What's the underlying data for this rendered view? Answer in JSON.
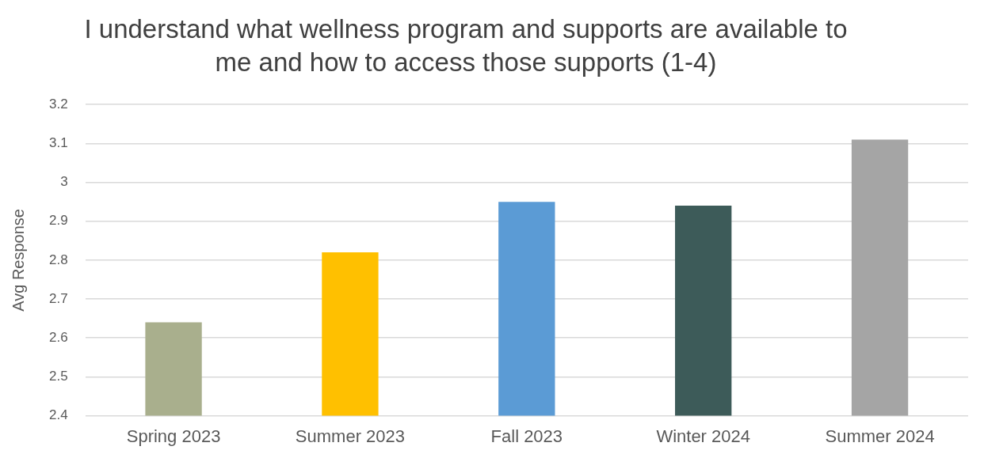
{
  "chart_data": {
    "type": "bar",
    "title": "I understand what wellness program and supports are available to me and how to access those supports  (1-4)",
    "ylabel": "Avg Response",
    "categories": [
      "Spring 2023",
      "Summer 2023",
      "Fall 2023",
      "Winter 2024",
      "Summer 2024"
    ],
    "values": [
      2.64,
      2.82,
      2.95,
      2.94,
      3.11
    ],
    "colors": [
      "#a9af8d",
      "#ffc000",
      "#5b9bd5",
      "#3d5b59",
      "#a5a5a5"
    ],
    "ylim": [
      2.4,
      3.2
    ],
    "yticks": [
      2.4,
      2.5,
      2.6,
      2.7,
      2.8,
      2.9,
      3,
      3.1,
      3.2
    ],
    "grid": "y",
    "legend": false
  }
}
